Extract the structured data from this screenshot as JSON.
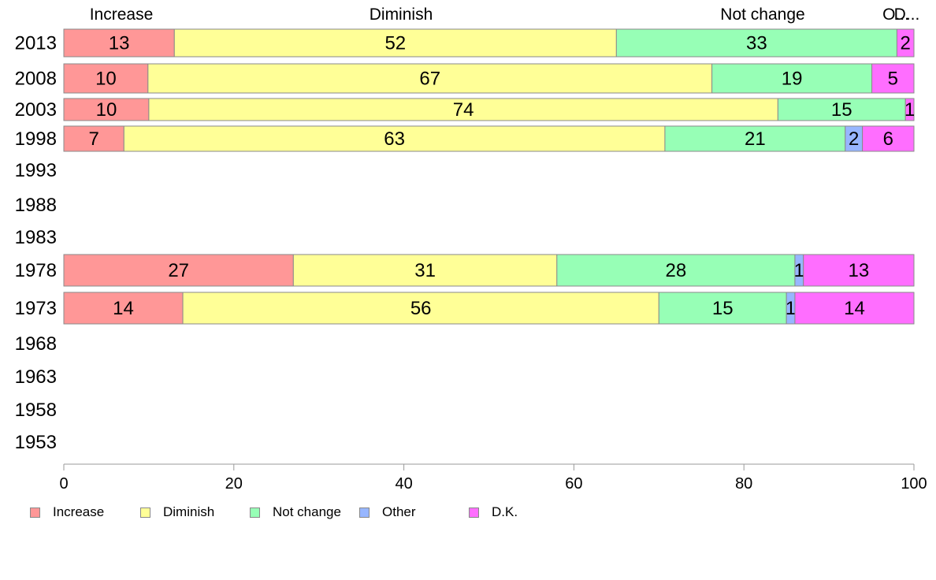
{
  "chart_data": {
    "type": "bar",
    "orientation": "horizontal",
    "stacked": true,
    "categories": [
      "2013",
      "2008",
      "2003",
      "1998",
      "1993",
      "1988",
      "1983",
      "1978",
      "1973",
      "1968",
      "1963",
      "1958",
      "1953"
    ],
    "series": [
      {
        "name": "Increase",
        "color": "#ff9797",
        "values": [
          13,
          10,
          10,
          7,
          null,
          null,
          null,
          27,
          14,
          null,
          null,
          null,
          null
        ]
      },
      {
        "name": "Diminish",
        "color": "#ffff97",
        "values": [
          52,
          67,
          74,
          63,
          null,
          null,
          null,
          31,
          56,
          null,
          null,
          null,
          null
        ]
      },
      {
        "name": "Not change",
        "color": "#97ffb6",
        "values": [
          33,
          19,
          15,
          21,
          null,
          null,
          null,
          28,
          15,
          null,
          null,
          null,
          null
        ]
      },
      {
        "name": "Other",
        "color": "#97b6ff",
        "values": [
          0,
          0,
          0,
          2,
          null,
          null,
          null,
          1,
          1,
          null,
          null,
          null,
          null
        ]
      },
      {
        "name": "D.K.",
        "color": "#ff6eff",
        "values": [
          2,
          5,
          1,
          6,
          null,
          null,
          null,
          13,
          14,
          null,
          null,
          null,
          null
        ]
      }
    ],
    "top_labels": [
      "Increase",
      "Diminish",
      "Not change",
      "O...",
      "D..."
    ],
    "xlim": [
      0,
      100
    ],
    "xticks": [
      "0",
      "20",
      "40",
      "60",
      "80",
      "100"
    ],
    "grid": false,
    "legend_position": "bottom"
  }
}
